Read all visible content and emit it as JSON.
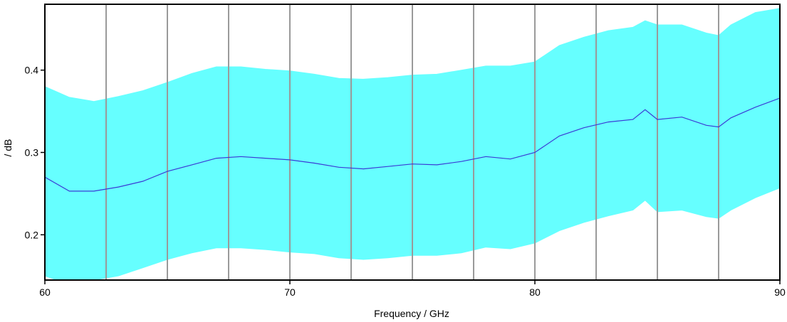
{
  "chart_data": {
    "type": "area",
    "title": "",
    "xlabel": "Frequency / GHz",
    "ylabel": "/ dB",
    "xlim": [
      60,
      90
    ],
    "ylim": [
      0.145,
      0.48
    ],
    "x_ticks": [
      60,
      70,
      80,
      90
    ],
    "x_tick_labels": [
      "60",
      "70",
      "80",
      "90"
    ],
    "y_ticks": [
      0.2,
      0.3,
      0.4
    ],
    "y_tick_labels": [
      "0.2",
      "0.3",
      "0.4"
    ],
    "vertical_lines": [
      62.5,
      65,
      67.5,
      70,
      72.5,
      75,
      77.5,
      80,
      82.5,
      85,
      87.5
    ],
    "legend": "none",
    "colors": {
      "band": "#66ffff",
      "mean": "#3b3bd6",
      "gridline": "#9a9a9a",
      "axis": "#000000"
    },
    "series": [
      {
        "x": [
          60,
          61,
          62,
          63,
          64,
          65,
          66,
          67,
          68,
          69,
          70,
          71,
          72,
          73,
          74,
          75,
          76,
          77,
          78,
          79,
          80,
          81,
          82,
          83,
          84,
          84.5,
          85,
          86,
          87,
          87.5,
          88,
          89,
          90
        ],
        "values": [
          0.27,
          0.253,
          0.253,
          0.258,
          0.265,
          0.277,
          0.285,
          0.293,
          0.295,
          0.293,
          0.291,
          0.287,
          0.282,
          0.28,
          0.283,
          0.286,
          0.285,
          0.289,
          0.295,
          0.292,
          0.3,
          0.32,
          0.33,
          0.337,
          0.34,
          0.352,
          0.34,
          0.343,
          0.333,
          0.331,
          0.342,
          0.355,
          0.366
        ]
      },
      {
        "x": [
          60,
          61,
          62,
          63,
          64,
          65,
          66,
          67,
          68,
          69,
          70,
          71,
          72,
          73,
          74,
          75,
          76,
          77,
          78,
          79,
          80,
          81,
          82,
          83,
          84,
          84.5,
          85,
          86,
          87,
          87.5,
          88,
          89,
          90
        ],
        "values": [
          0.38,
          0.367,
          0.362,
          0.368,
          0.375,
          0.385,
          0.396,
          0.404,
          0.404,
          0.401,
          0.399,
          0.395,
          0.39,
          0.389,
          0.391,
          0.394,
          0.395,
          0.4,
          0.405,
          0.405,
          0.41,
          0.43,
          0.44,
          0.448,
          0.452,
          0.46,
          0.455,
          0.455,
          0.445,
          0.442,
          0.455,
          0.47,
          0.475
        ]
      },
      {
        "x": [
          60,
          61,
          62,
          63,
          64,
          65,
          66,
          67,
          68,
          69,
          70,
          71,
          72,
          73,
          74,
          75,
          76,
          77,
          78,
          79,
          80,
          81,
          82,
          83,
          84,
          84.5,
          85,
          86,
          87,
          87.5,
          88,
          89,
          90
        ],
        "values": [
          0.15,
          0.14,
          0.145,
          0.15,
          0.16,
          0.17,
          0.178,
          0.184,
          0.184,
          0.182,
          0.179,
          0.177,
          0.172,
          0.17,
          0.172,
          0.175,
          0.175,
          0.178,
          0.185,
          0.183,
          0.19,
          0.205,
          0.215,
          0.223,
          0.23,
          0.242,
          0.228,
          0.23,
          0.222,
          0.22,
          0.23,
          0.245,
          0.257
        ]
      }
    ]
  }
}
